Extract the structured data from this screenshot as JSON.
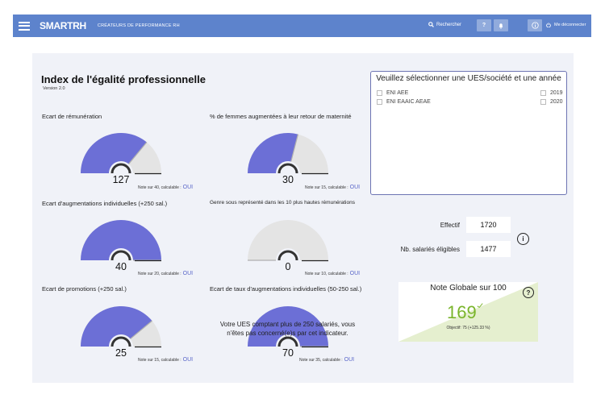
{
  "header": {
    "logo": "SMARTRH",
    "tagline": "CRÉATEURS DE PERFORMANCE RH",
    "search_label": "Rechercher",
    "help_label": "?",
    "logout_label": "Me déconnecter",
    "color": "#5d83cc"
  },
  "page": {
    "title": "Index de l'égalité professionnelle",
    "version": "Version 2.0"
  },
  "slicer": {
    "title": "Veuillez sélectionner une UES/société et une année",
    "entities": [
      "ENI AEE",
      "ENI EAAIC AEAE"
    ],
    "years": [
      "2019",
      "2020"
    ]
  },
  "gauges": [
    {
      "label": "Ecart de rémunération",
      "value": "127",
      "fill": 0.72,
      "note": "Note sur 40, calculable :",
      "calc": "OUI"
    },
    {
      "label": "% de femmes augmentées à leur retour de maternité",
      "value": "30",
      "fill": 0.58,
      "note": "Note sur 15, calculable :",
      "calc": "OUI"
    },
    {
      "label": "Ecart d'augmentations individuelles (+250 sal.)",
      "value": "40",
      "fill": 1.0,
      "note": "Note sur 20, calculable :",
      "calc": "OUI"
    },
    {
      "label": "Genre sous représenté dans les 10 plus hautes rémunérations",
      "value": "0",
      "fill": 0.0,
      "note": "Note sur 10, calculable :",
      "calc": "OUI"
    },
    {
      "label": "Ecart de promotions (+250 sal.)",
      "value": "25",
      "fill": 0.78,
      "note": "Note sur 15,  calculable :",
      "calc": "OUI"
    },
    {
      "label": "Ecart de taux d'augmentations individuelles (50-250 sal.)",
      "value": "70",
      "fill": 1.0,
      "note": "Note sur 35,  calculable :",
      "calc": "OUI"
    }
  ],
  "overlay_message": "Votre UES comptant plus de 250 salariés, vous n'êtes pas concerné(e)s par cet indicateur.",
  "kpis": {
    "effectif_label": "Effectif",
    "effectif_value": "1720",
    "eligibles_label": "Nb. salariés éligibles",
    "eligibles_value": "1477"
  },
  "score": {
    "title": "Note Globale sur 100",
    "value": "169",
    "objective": "Objectif: 75 (+125.33 %)"
  },
  "colors": {
    "gauge_fill": "#6c6fd6",
    "gauge_track": "#e4e4e4",
    "score_green": "#7ab52b",
    "score_area": "#e5efcf",
    "calc_link": "#5b67c9"
  }
}
